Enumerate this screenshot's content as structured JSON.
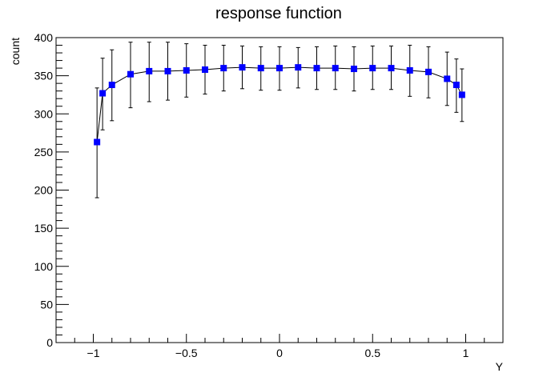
{
  "chart_data": {
    "type": "scatter",
    "title": "response function",
    "xlabel": "Y",
    "ylabel": "count",
    "xlim": [
      -1.2,
      1.2
    ],
    "ylim": [
      0,
      400
    ],
    "x_ticks": [
      -1,
      -0.5,
      0,
      0.5,
      1
    ],
    "x_tick_labels": [
      "−1",
      "−0.5",
      "0",
      "0.5",
      "1"
    ],
    "y_ticks": [
      0,
      50,
      100,
      150,
      200,
      250,
      300,
      350,
      400
    ],
    "y_tick_labels": [
      "0",
      "50",
      "100",
      "150",
      "200",
      "250",
      "300",
      "350",
      "400"
    ],
    "grid": false,
    "connected_line": true,
    "marker": "square",
    "marker_color": "#0000ff",
    "line_color": "#000000",
    "series": [
      {
        "x": [
          -0.98,
          -0.95,
          -0.9,
          -0.8,
          -0.7,
          -0.6,
          -0.5,
          -0.4,
          -0.3,
          -0.2,
          -0.1,
          0.0,
          0.1,
          0.2,
          0.3,
          0.4,
          0.5,
          0.6,
          0.7,
          0.8,
          0.9,
          0.95,
          0.98
        ],
        "y": [
          263,
          327,
          338,
          352,
          356,
          356,
          357,
          358,
          360,
          361,
          360,
          360,
          361,
          360,
          360,
          359,
          360,
          360,
          357,
          355,
          346,
          338,
          325
        ],
        "yerr_low": [
          73,
          48,
          47,
          44,
          40,
          38,
          35,
          32,
          30,
          28,
          29,
          29,
          27,
          28,
          28,
          29,
          28,
          28,
          34,
          34,
          35,
          36,
          35
        ],
        "yerr_high": [
          71,
          46,
          46,
          42,
          38,
          38,
          35,
          32,
          30,
          28,
          28,
          28,
          26,
          28,
          29,
          29,
          29,
          29,
          33,
          33,
          35,
          34,
          34
        ]
      }
    ]
  }
}
